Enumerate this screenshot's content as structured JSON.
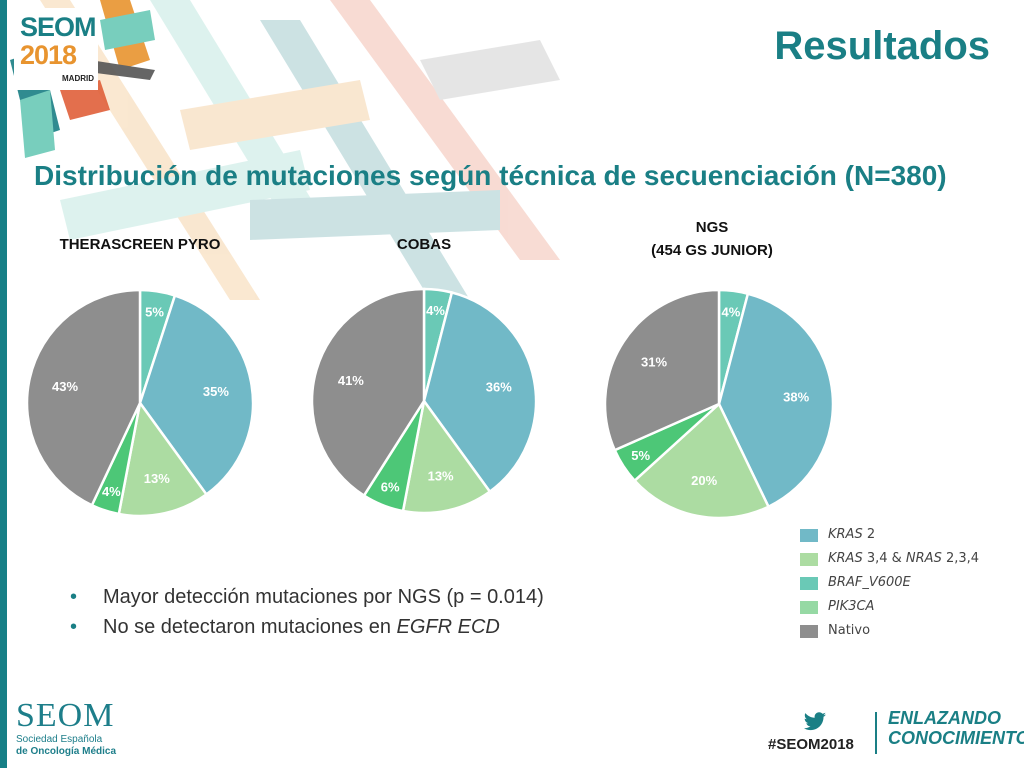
{
  "header": {
    "title": "Resultados",
    "logo": {
      "line1": "SEOM",
      "line2": "2018",
      "line3": "MADRID"
    }
  },
  "subtitle": "Distribución de mutaciones según técnica de secuenciación (N=380)",
  "legend": [
    {
      "prefix": "KRAS",
      "rest": " 2",
      "color": "#71b9c7"
    },
    {
      "prefix": "KRAS",
      "rest": " 3,4 & ",
      "prefix2": "NRAS",
      "rest2": " 2,3,4",
      "color": "#acdca2"
    },
    {
      "prefix": "BRAF_V600E",
      "rest": "",
      "color": "#6ac9b6"
    },
    {
      "prefix": "PIK3CA",
      "rest": "",
      "color": "#96d9a4"
    },
    {
      "prefix": "",
      "rest": "Nativo",
      "color": "#8e8e8e"
    }
  ],
  "colors": {
    "brand": "#1a7f85",
    "kras2": "#71b9c7",
    "kras34_nras": "#acdca2",
    "braf": "#6ac9b6",
    "pik3ca": "#4dc777",
    "nativo": "#8e8e8e"
  },
  "chart_data": [
    {
      "type": "pie",
      "title": "THERASCREEN PYRO",
      "labels": [
        "BRAF_V600E",
        "KRAS 2",
        "KRAS 3,4 & NRAS 2,3,4",
        "PIK3CA",
        "Nativo"
      ],
      "values": [
        5,
        35,
        13,
        4,
        43
      ],
      "value_labels": [
        "5%",
        "35%",
        "13%",
        "4%",
        "43%"
      ]
    },
    {
      "type": "pie",
      "title": "COBAS",
      "labels": [
        "BRAF_V600E",
        "KRAS 2",
        "KRAS 3,4 & NRAS 2,3,4",
        "PIK3CA",
        "Nativo"
      ],
      "values": [
        4,
        36,
        13,
        6,
        41
      ],
      "value_labels": [
        "4%",
        "36%",
        "13%",
        "6%",
        "41%"
      ]
    },
    {
      "type": "pie",
      "title_lines": [
        "NGS",
        "(454 GS JUNIOR)"
      ],
      "labels": [
        "BRAF_V600E",
        "KRAS 2",
        "KRAS 3,4 & NRAS 2,3,4",
        "PIK3CA",
        "Nativo"
      ],
      "values": [
        4,
        38,
        20,
        5,
        31
      ],
      "value_labels": [
        "4%",
        "38%",
        "20%",
        "5%",
        "31%"
      ]
    }
  ],
  "bullets": [
    {
      "text": "Mayor detección mutaciones por NGS (p = 0.014)"
    },
    {
      "text": "No se detectaron mutaciones en ",
      "italic": "EGFR ECD"
    }
  ],
  "footer": {
    "seom_word": "SEOM",
    "seom_sub1": "Sociedad Española",
    "seom_sub2": "de Oncología Médica",
    "hashtag": "#SEOM2018",
    "slogan_line1": "ENLAZANDO",
    "slogan_line2": "CONOCIMIENTO"
  }
}
